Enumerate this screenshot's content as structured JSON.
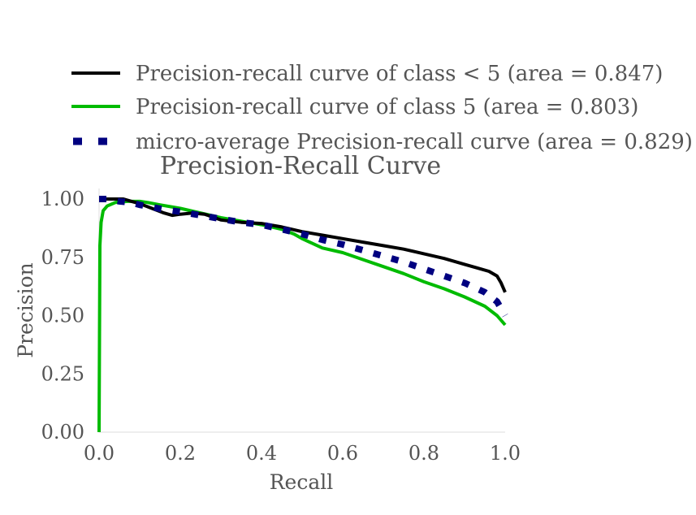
{
  "chart_data": {
    "type": "line",
    "title": "Precision-Recall Curve",
    "xlabel": "Recall",
    "ylabel": "Precision",
    "xlim": [
      0.0,
      1.0
    ],
    "ylim": [
      0.0,
      1.0
    ],
    "grid": false,
    "legend_position": "top",
    "x_ticks": [
      "0.0",
      "0.2",
      "0.4",
      "0.6",
      "0.8",
      "1.0"
    ],
    "y_ticks": [
      "0.00",
      "0.25",
      "0.50",
      "0.75",
      "1.00"
    ],
    "x_tick_values": [
      0.0,
      0.2,
      0.4,
      0.6,
      0.8,
      1.0
    ],
    "y_tick_values": [
      0.0,
      0.25,
      0.5,
      0.75,
      1.0
    ],
    "series": [
      {
        "name": "Precision-recall curve of class < 5 (area = 0.847)",
        "color": "#000000",
        "style": "solid",
        "x": [
          0.0,
          0.01,
          0.03,
          0.06,
          0.08,
          0.1,
          0.13,
          0.16,
          0.18,
          0.2,
          0.23,
          0.26,
          0.3,
          0.35,
          0.4,
          0.45,
          0.5,
          0.55,
          0.6,
          0.65,
          0.7,
          0.75,
          0.8,
          0.85,
          0.9,
          0.93,
          0.96,
          0.98,
          0.99,
          1.0
        ],
        "y": [
          1.0,
          1.0,
          1.0,
          1.0,
          0.99,
          0.98,
          0.96,
          0.94,
          0.93,
          0.935,
          0.94,
          0.935,
          0.91,
          0.9,
          0.895,
          0.88,
          0.86,
          0.845,
          0.83,
          0.815,
          0.8,
          0.785,
          0.765,
          0.745,
          0.72,
          0.705,
          0.69,
          0.67,
          0.64,
          0.6
        ]
      },
      {
        "name": "Precision-recall curve of class 5 (area = 0.803)",
        "color": "#00bb00",
        "style": "solid",
        "x": [
          0.0,
          0.002,
          0.005,
          0.01,
          0.02,
          0.04,
          0.07,
          0.1,
          0.12,
          0.15,
          0.2,
          0.25,
          0.3,
          0.35,
          0.4,
          0.45,
          0.48,
          0.5,
          0.55,
          0.6,
          0.65,
          0.7,
          0.75,
          0.8,
          0.85,
          0.9,
          0.95,
          0.98,
          1.0
        ],
        "y": [
          0.0,
          0.8,
          0.9,
          0.95,
          0.97,
          0.985,
          0.99,
          0.99,
          0.985,
          0.975,
          0.96,
          0.94,
          0.92,
          0.905,
          0.89,
          0.87,
          0.85,
          0.83,
          0.79,
          0.77,
          0.74,
          0.71,
          0.68,
          0.645,
          0.615,
          0.58,
          0.54,
          0.5,
          0.46
        ]
      },
      {
        "name": "micro-average Precision-recall curve (area = 0.829)",
        "color": "#000080",
        "style": "dashed",
        "x": [
          0.0,
          0.02,
          0.05,
          0.08,
          0.1,
          0.13,
          0.16,
          0.2,
          0.25,
          0.3,
          0.35,
          0.4,
          0.45,
          0.5,
          0.55,
          0.6,
          0.65,
          0.7,
          0.75,
          0.8,
          0.85,
          0.9,
          0.95,
          0.98,
          1.0
        ],
        "y": [
          1.0,
          1.0,
          0.99,
          0.985,
          0.975,
          0.965,
          0.955,
          0.945,
          0.93,
          0.915,
          0.9,
          0.89,
          0.87,
          0.85,
          0.825,
          0.805,
          0.78,
          0.755,
          0.73,
          0.7,
          0.67,
          0.64,
          0.6,
          0.56,
          0.5
        ]
      }
    ]
  }
}
